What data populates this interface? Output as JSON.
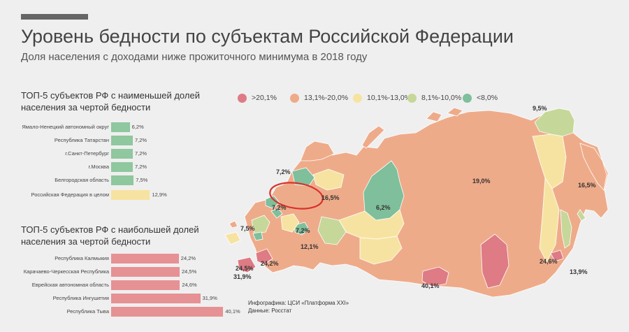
{
  "title": "Уровень бедности по субъектам Российской Федерации",
  "subtitle": "Доля населения с доходами ниже прожиточного минимума в 2018 году",
  "lowest": {
    "heading_line1": "ТОП-5 субъектов РФ с наименьшей долей",
    "heading_line2": "населения за чертой бедности",
    "rows": [
      {
        "label": "Ямало-Ненецкий автономный округ",
        "value": 6.2,
        "text": "6,2%"
      },
      {
        "label": "Республика Татарстан",
        "value": 7.2,
        "text": "7,2%"
      },
      {
        "label": "г.Санкт-Петербург",
        "value": 7.2,
        "text": "7,2%"
      },
      {
        "label": "г.Москва",
        "value": 7.2,
        "text": "7,2%"
      },
      {
        "label": "Белгородская область",
        "value": 7.5,
        "text": "7,5%"
      }
    ],
    "russia": {
      "label": "Российская Федерация в целом",
      "value": 12.9,
      "text": "12,9%"
    }
  },
  "highest": {
    "heading_line1": "ТОП-5 субъектов РФ с наибольшей долей",
    "heading_line2": "населения за чертой бедности",
    "rows": [
      {
        "label": "Республика Калмыкия",
        "value": 24.2,
        "text": "24,2%"
      },
      {
        "label": "Карачаево-Черкесская Республика",
        "value": 24.5,
        "text": "24,5%"
      },
      {
        "label": "Еврейская автономная область",
        "value": 24.6,
        "text": "24,6%"
      },
      {
        "label": "Республика Ингушетия",
        "value": 31.9,
        "text": "31,9%"
      },
      {
        "label": "Республика Тыва",
        "value": 40.1,
        "text": "40,1%"
      }
    ]
  },
  "colors": {
    "green": "#8fc79e",
    "yellow": "#f7e3a1",
    "red": "#e69194",
    "very_high": "#de7b84",
    "high": "#eeab8a",
    "mid": "#f7e3a1",
    "low": "#c6d79a",
    "very_low": "#7fbf9b",
    "annotation": "#d9322c"
  },
  "legend": [
    {
      "label": ">20,1%",
      "color": "#de7b84"
    },
    {
      "label": "13,1%-20,0%",
      "color": "#eeab8a"
    },
    {
      "label": "10,1%-13,0%",
      "color": "#f7e3a1"
    },
    {
      "label": "8,1%-10,0%",
      "color": "#c6d79a"
    },
    {
      "label": "<8,0%",
      "color": "#7fbf9b"
    }
  ],
  "map_labels": [
    "9,5%",
    "19,0%",
    "16,5%",
    "16,5%",
    "6,2%",
    "7,2%",
    "7,2%",
    "7,5%",
    "7,2%",
    "12,1%",
    "24,5%",
    "24,2%",
    "31,9%",
    "40,1%",
    "24,6%",
    "13,9%"
  ],
  "credits": {
    "line1": "Инфографика: ЦСИ «Платформа XXI»",
    "line2": "Данные: Росстат"
  }
}
